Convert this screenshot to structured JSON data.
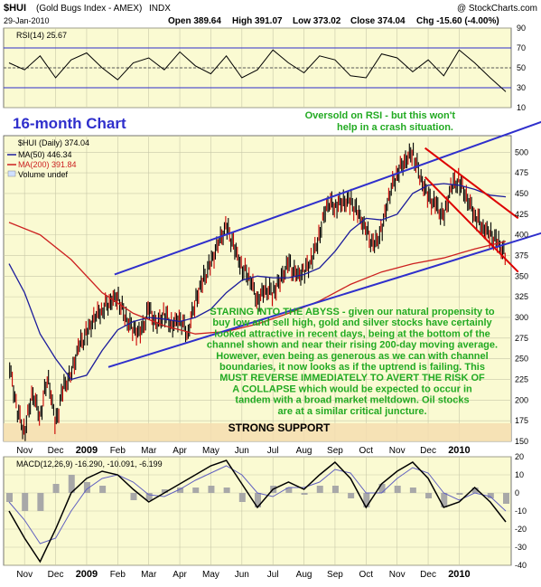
{
  "header": {
    "symbol": "$HUI",
    "name": "(Gold Bugs Index - AMEX)",
    "exchange": "INDX",
    "date": "29-Jan-2010",
    "open": "Open 389.64",
    "high": "High 391.07",
    "low": "Low 373.02",
    "close": "Close 374.04",
    "change": "Chg -15.60 (-4.00%)",
    "credit": "@ StockCharts.com"
  },
  "annotations": {
    "chart_label": "16-month Chart",
    "rsi_note_1": "Oversold on RSI - but this won't",
    "rsi_note_2": "help in a crash situation.",
    "commentary": [
      "STARING INTO THE ABYSS - given our natural propensity to",
      "buy low and sell high, gold and silver stocks have certainly",
      "looked attractive in recent days, being at the bottom of the",
      "channel shown and near their rising 200-day moving average.",
      "However, even being as generous as we can with channel",
      "boundaries, it now looks as if the uptrend is failing. This",
      "MUST REVERSE IMMEDIATELY TO AVERT THE RISK OF",
      "A COLLAPSE which would be expected to occur in",
      "tandem with a broad market meltdown. Oil stocks",
      "are at a similar critical juncture."
    ],
    "support_label": "STRONG SUPPORT"
  },
  "legend": {
    "price": "$HUI (Daily) 374.04",
    "ma50": "MA(50) 446.34",
    "ma200": "MA(200) 391.84",
    "volume": "Volume undef"
  },
  "colors": {
    "panel_bg": "#fafad2",
    "grid": "#c8c8a8",
    "bar_up": "#000000",
    "bar_down": "#cc0000",
    "ma50": "#1c1c9c",
    "ma200": "#cc2020",
    "channel_blue": "#2f2fcc",
    "channel_red": "#dd0000",
    "support_band": "#f5ddb0",
    "annotation_green": "#22aa22",
    "title_blue": "#2f2fcc"
  },
  "chart_data": [
    {
      "type": "line",
      "panel": "rsi",
      "title": "RSI(14) 25.67",
      "ylim": [
        10,
        90
      ],
      "yticks": [
        10,
        30,
        50,
        70,
        90
      ],
      "reference_lines": [
        30,
        50,
        70
      ],
      "series": [
        {
          "name": "RSI(14)",
          "x": [
            0,
            0.5,
            1,
            1.5,
            2,
            2.5,
            3,
            3.5,
            4,
            4.5,
            5,
            5.5,
            6,
            6.5,
            7,
            7.5,
            8,
            8.5,
            9,
            9.5,
            10,
            10.5,
            11,
            11.5,
            12,
            12.5,
            13,
            13.5,
            14,
            14.5,
            15,
            15.5,
            16
          ],
          "values": [
            55,
            48,
            62,
            40,
            58,
            65,
            50,
            38,
            55,
            60,
            48,
            66,
            52,
            44,
            62,
            40,
            48,
            68,
            55,
            45,
            62,
            58,
            42,
            40,
            64,
            60,
            46,
            58,
            42,
            68,
            55,
            40,
            26
          ]
        }
      ]
    },
    {
      "type": "line",
      "panel": "price",
      "ylim": [
        150,
        520
      ],
      "yticks": [
        150,
        175,
        200,
        225,
        250,
        275,
        300,
        325,
        350,
        375,
        400,
        425,
        450,
        475,
        500
      ],
      "x_tick_labels": [
        "Nov",
        "Dec",
        "2009",
        "Feb",
        "Mar",
        "Apr",
        "May",
        "Jun",
        "Jul",
        "Aug",
        "Sep",
        "Oct",
        "Nov",
        "Dec",
        "2010"
      ],
      "x_tick_positions": [
        0.5,
        1.5,
        2.5,
        3.5,
        4.5,
        5.5,
        6.5,
        7.5,
        8.5,
        9.5,
        10.5,
        11.5,
        12.5,
        13.5,
        14.5
      ],
      "series": [
        {
          "name": "$HUI (Daily)",
          "x": [
            0,
            0.25,
            0.5,
            0.75,
            1,
            1.25,
            1.5,
            1.75,
            2,
            2.25,
            2.5,
            2.75,
            3,
            3.25,
            3.5,
            3.75,
            4,
            4.25,
            4.5,
            4.75,
            5,
            5.25,
            5.5,
            5.75,
            6,
            6.25,
            6.5,
            6.75,
            7,
            7.25,
            7.5,
            7.75,
            8,
            8.25,
            8.5,
            8.75,
            9,
            9.25,
            9.5,
            9.75,
            10,
            10.25,
            10.5,
            10.75,
            11,
            11.25,
            11.5,
            11.75,
            12,
            12.25,
            12.5,
            12.75,
            13,
            13.25,
            13.5,
            13.75,
            14,
            14.25,
            14.5,
            14.75,
            15,
            15.25,
            15.5,
            15.75,
            16
          ],
          "values": [
            245,
            190,
            160,
            210,
            180,
            230,
            170,
            215,
            230,
            265,
            280,
            300,
            310,
            320,
            325,
            300,
            285,
            280,
            310,
            290,
            305,
            290,
            300,
            280,
            320,
            345,
            365,
            390,
            410,
            385,
            360,
            350,
            320,
            335,
            330,
            345,
            365,
            350,
            355,
            370,
            400,
            440,
            435,
            440,
            440,
            425,
            405,
            385,
            405,
            450,
            475,
            490,
            500,
            470,
            445,
            435,
            420,
            460,
            465,
            445,
            425,
            410,
            400,
            390,
            374
          ]
        },
        {
          "name": "MA(50)",
          "x": [
            0,
            0.5,
            1,
            1.5,
            2,
            2.5,
            3,
            3.5,
            4,
            4.5,
            5,
            5.5,
            6,
            6.5,
            7,
            7.5,
            8,
            8.5,
            9,
            9.5,
            10,
            10.5,
            11,
            11.5,
            12,
            12.5,
            13,
            13.5,
            14,
            14.5,
            15,
            15.5,
            16
          ],
          "values": [
            365,
            330,
            280,
            250,
            225,
            230,
            260,
            285,
            295,
            300,
            298,
            295,
            300,
            310,
            330,
            345,
            350,
            348,
            348,
            352,
            360,
            380,
            405,
            420,
            418,
            425,
            450,
            460,
            462,
            460,
            455,
            448,
            446
          ]
        },
        {
          "name": "MA(200)",
          "x": [
            0,
            1,
            2,
            3,
            4,
            5,
            6,
            7,
            8,
            9,
            10,
            11,
            12,
            13,
            14,
            15,
            16
          ],
          "values": [
            415,
            400,
            370,
            330,
            305,
            290,
            280,
            283,
            292,
            305,
            320,
            340,
            355,
            365,
            372,
            383,
            392
          ]
        }
      ]
    },
    {
      "type": "line",
      "panel": "macd",
      "title": "MACD(12,26,9) -16.290, -10.091, -6.199",
      "ylim": [
        -40,
        20
      ],
      "yticks": [
        -40,
        -30,
        -20,
        -10,
        0,
        10,
        20
      ],
      "series": [
        {
          "name": "MACD",
          "x": [
            0,
            0.5,
            1,
            1.5,
            2,
            2.5,
            3,
            3.5,
            4,
            4.5,
            5,
            5.5,
            6,
            6.5,
            7,
            7.5,
            8,
            8.5,
            9,
            9.5,
            10,
            10.5,
            11,
            11.5,
            12,
            12.5,
            13,
            13.5,
            14,
            14.5,
            15,
            15.5,
            16
          ],
          "values": [
            -10,
            -25,
            -38,
            -20,
            0,
            8,
            12,
            10,
            2,
            -5,
            0,
            5,
            10,
            15,
            18,
            5,
            -8,
            2,
            6,
            2,
            10,
            17,
            8,
            -8,
            5,
            12,
            17,
            8,
            -8,
            -5,
            3,
            -5,
            -16
          ]
        },
        {
          "name": "Signal",
          "x": [
            0,
            0.5,
            1,
            1.5,
            2,
            2.5,
            3,
            3.5,
            4,
            4.5,
            5,
            5.5,
            6,
            6.5,
            7,
            7.5,
            8,
            8.5,
            9,
            9.5,
            10,
            10.5,
            11,
            11.5,
            12,
            12.5,
            13,
            13.5,
            14,
            14.5,
            15,
            15.5,
            16
          ],
          "values": [
            -5,
            -15,
            -28,
            -25,
            -10,
            2,
            8,
            10,
            6,
            -1,
            -2,
            2,
            7,
            11,
            15,
            10,
            0,
            -2,
            3,
            3,
            6,
            13,
            11,
            0,
            0,
            8,
            14,
            11,
            0,
            -4,
            0,
            -2,
            -10
          ]
        },
        {
          "name": "Histogram",
          "x": [
            0,
            0.5,
            1,
            1.5,
            2,
            2.5,
            3,
            3.5,
            4,
            4.5,
            5,
            5.5,
            6,
            6.5,
            7,
            7.5,
            8,
            8.5,
            9,
            9.5,
            10,
            10.5,
            11,
            11.5,
            12,
            12.5,
            13,
            13.5,
            14,
            14.5,
            15,
            15.5,
            16
          ],
          "values": [
            -5,
            -10,
            -10,
            5,
            10,
            6,
            4,
            0,
            -4,
            -4,
            2,
            3,
            3,
            4,
            3,
            -5,
            -8,
            4,
            3,
            -1,
            4,
            4,
            -3,
            -8,
            5,
            4,
            3,
            -3,
            -8,
            -1,
            3,
            -3,
            -6
          ]
        }
      ]
    }
  ]
}
